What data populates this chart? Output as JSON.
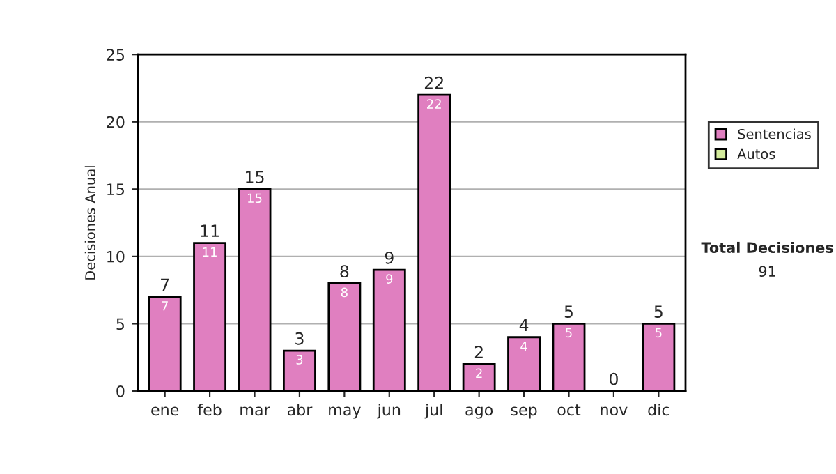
{
  "chart_data": {
    "type": "bar",
    "stacked": true,
    "ylabel": "Decisiones Anual",
    "categories": [
      "ene",
      "feb",
      "mar",
      "abr",
      "may",
      "jun",
      "jul",
      "ago",
      "sep",
      "oct",
      "nov",
      "dic"
    ],
    "series": [
      {
        "name": "Sentencias",
        "color": "#e07fc0",
        "values": [
          7,
          11,
          15,
          3,
          8,
          9,
          22,
          2,
          4,
          5,
          0,
          5
        ],
        "value_labels": [
          "7",
          "11",
          "15",
          "3",
          "8",
          "9",
          "22",
          "2",
          "4",
          "5",
          null,
          "5"
        ]
      },
      {
        "name": "Autos",
        "color": "#d4ec9c",
        "values": [
          0,
          0,
          0,
          0,
          0,
          0,
          0,
          0,
          0,
          0,
          0,
          0
        ]
      }
    ],
    "totals": [
      "7",
      "11",
      "15",
      "3",
      "8",
      "9",
      "22",
      "2",
      "4",
      "5",
      "0",
      "5"
    ],
    "ylim": [
      0,
      25
    ],
    "yticks": [
      0,
      5,
      10,
      15,
      20,
      25
    ],
    "grid": "y",
    "legend": "right",
    "annotations": [
      "Total Decisiones",
      "91"
    ]
  }
}
